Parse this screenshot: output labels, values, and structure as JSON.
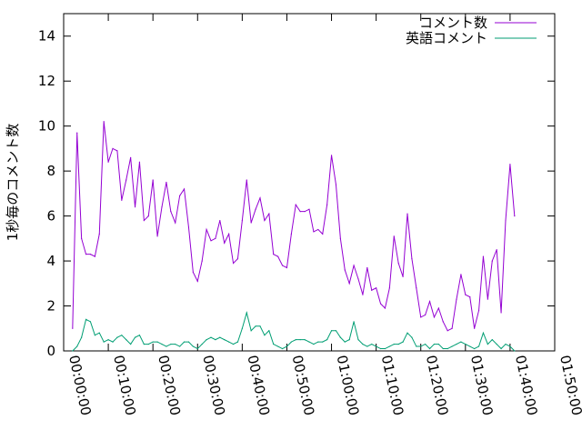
{
  "chart_data": {
    "type": "line",
    "ylabel": "1秒毎のコメント数",
    "xlabel": "",
    "ylim": [
      0,
      15
    ],
    "xlim_seconds": [
      0,
      6600
    ],
    "y_ticks": [
      0,
      2,
      4,
      6,
      8,
      10,
      12,
      14
    ],
    "y_tick_labels": [
      "0",
      "2",
      "4",
      "6",
      "8",
      "10",
      "12",
      "14"
    ],
    "x_ticks_seconds": [
      0,
      600,
      1200,
      1800,
      2400,
      3000,
      3600,
      4200,
      4800,
      5400,
      6000,
      6600
    ],
    "x_tick_labels": [
      "00:00:00",
      "00:10:00",
      "00:20:00",
      "00:30:00",
      "00:40:00",
      "00:50:00",
      "01:00:00",
      "01:10:00",
      "01:20:00",
      "01:30:00",
      "01:40:00",
      "01:50:00"
    ],
    "grid": false,
    "legend_position": "top-right",
    "series": [
      {
        "name": "コメント数",
        "color": "#9400d3",
        "points": [
          [
            "00:02:00",
            1.0
          ],
          [
            "00:03:00",
            9.7
          ],
          [
            "00:04:00",
            5.0
          ],
          [
            "00:05:00",
            4.3
          ],
          [
            "00:06:00",
            4.3
          ],
          [
            "00:07:00",
            4.2
          ],
          [
            "00:08:00",
            5.2
          ],
          [
            "00:09:00",
            10.2
          ],
          [
            "00:10:00",
            8.4
          ],
          [
            "00:11:00",
            9.0
          ],
          [
            "00:12:00",
            8.9
          ],
          [
            "00:13:00",
            6.7
          ],
          [
            "00:14:00",
            7.6
          ],
          [
            "00:15:00",
            8.6
          ],
          [
            "00:16:00",
            6.4
          ],
          [
            "00:17:00",
            8.4
          ],
          [
            "00:18:00",
            5.8
          ],
          [
            "00:19:00",
            6.0
          ],
          [
            "00:20:00",
            7.6
          ],
          [
            "00:21:00",
            5.1
          ],
          [
            "00:22:00",
            6.4
          ],
          [
            "00:23:00",
            7.5
          ],
          [
            "00:24:00",
            6.2
          ],
          [
            "00:25:00",
            5.7
          ],
          [
            "00:26:00",
            6.9
          ],
          [
            "00:27:00",
            7.2
          ],
          [
            "00:28:00",
            5.5
          ],
          [
            "00:29:00",
            3.5
          ],
          [
            "00:30:00",
            3.1
          ],
          [
            "00:31:00",
            4.0
          ],
          [
            "00:32:00",
            5.4
          ],
          [
            "00:33:00",
            4.9
          ],
          [
            "00:34:00",
            5.0
          ],
          [
            "00:35:00",
            5.8
          ],
          [
            "00:36:00",
            4.8
          ],
          [
            "00:37:00",
            5.2
          ],
          [
            "00:38:00",
            3.9
          ],
          [
            "00:39:00",
            4.1
          ],
          [
            "00:40:00",
            5.8
          ],
          [
            "00:41:00",
            7.6
          ],
          [
            "00:42:00",
            5.7
          ],
          [
            "00:43:00",
            6.3
          ],
          [
            "00:44:00",
            6.8
          ],
          [
            "00:45:00",
            5.8
          ],
          [
            "00:46:00",
            6.1
          ],
          [
            "00:47:00",
            4.3
          ],
          [
            "00:48:00",
            4.2
          ],
          [
            "00:49:00",
            3.8
          ],
          [
            "00:50:00",
            3.7
          ],
          [
            "00:51:00",
            5.2
          ],
          [
            "00:52:00",
            6.5
          ],
          [
            "00:53:00",
            6.2
          ],
          [
            "00:54:00",
            6.2
          ],
          [
            "00:55:00",
            6.3
          ],
          [
            "00:56:00",
            5.3
          ],
          [
            "00:57:00",
            5.4
          ],
          [
            "00:58:00",
            5.2
          ],
          [
            "00:59:00",
            6.5
          ],
          [
            "01:00:00",
            8.7
          ],
          [
            "01:01:00",
            7.4
          ],
          [
            "01:02:00",
            5.0
          ],
          [
            "01:03:00",
            3.6
          ],
          [
            "01:04:00",
            3.0
          ],
          [
            "01:05:00",
            3.8
          ],
          [
            "01:06:00",
            3.2
          ],
          [
            "01:07:00",
            2.5
          ],
          [
            "01:08:00",
            3.7
          ],
          [
            "01:09:00",
            2.7
          ],
          [
            "01:10:00",
            2.8
          ],
          [
            "01:11:00",
            2.1
          ],
          [
            "01:12:00",
            1.9
          ],
          [
            "01:13:00",
            2.8
          ],
          [
            "01:14:00",
            5.1
          ],
          [
            "01:15:00",
            3.9
          ],
          [
            "01:16:00",
            3.3
          ],
          [
            "01:17:00",
            6.1
          ],
          [
            "01:18:00",
            4.1
          ],
          [
            "01:19:00",
            2.8
          ],
          [
            "01:20:00",
            1.5
          ],
          [
            "01:21:00",
            1.6
          ],
          [
            "01:22:00",
            2.2
          ],
          [
            "01:23:00",
            1.5
          ],
          [
            "01:24:00",
            1.9
          ],
          [
            "01:25:00",
            1.3
          ],
          [
            "01:26:00",
            0.9
          ],
          [
            "01:27:00",
            1.0
          ],
          [
            "01:28:00",
            2.3
          ],
          [
            "01:29:00",
            3.4
          ],
          [
            "01:30:00",
            2.5
          ],
          [
            "01:31:00",
            2.4
          ],
          [
            "01:32:00",
            1.0
          ],
          [
            "01:33:00",
            1.8
          ],
          [
            "01:34:00",
            4.2
          ],
          [
            "01:35:00",
            2.3
          ],
          [
            "01:36:00",
            4.0
          ],
          [
            "01:37:00",
            4.5
          ],
          [
            "01:38:00",
            1.7
          ],
          [
            "01:39:00",
            5.8
          ],
          [
            "01:40:00",
            8.3
          ],
          [
            "01:41:00",
            6.0
          ]
        ]
      },
      {
        "name": "英語コメント",
        "color": "#009e73",
        "points": [
          [
            "00:02:00",
            0.0
          ],
          [
            "00:03:00",
            0.2
          ],
          [
            "00:04:00",
            0.6
          ],
          [
            "00:05:00",
            1.4
          ],
          [
            "00:06:00",
            1.3
          ],
          [
            "00:07:00",
            0.7
          ],
          [
            "00:08:00",
            0.8
          ],
          [
            "00:09:00",
            0.4
          ],
          [
            "00:10:00",
            0.5
          ],
          [
            "00:11:00",
            0.4
          ],
          [
            "00:12:00",
            0.6
          ],
          [
            "00:13:00",
            0.7
          ],
          [
            "00:14:00",
            0.5
          ],
          [
            "00:15:00",
            0.3
          ],
          [
            "00:16:00",
            0.6
          ],
          [
            "00:17:00",
            0.7
          ],
          [
            "00:18:00",
            0.3
          ],
          [
            "00:19:00",
            0.3
          ],
          [
            "00:20:00",
            0.4
          ],
          [
            "00:21:00",
            0.4
          ],
          [
            "00:22:00",
            0.3
          ],
          [
            "00:23:00",
            0.2
          ],
          [
            "00:24:00",
            0.3
          ],
          [
            "00:25:00",
            0.3
          ],
          [
            "00:26:00",
            0.2
          ],
          [
            "00:27:00",
            0.4
          ],
          [
            "00:28:00",
            0.4
          ],
          [
            "00:29:00",
            0.2
          ],
          [
            "00:30:00",
            0.1
          ],
          [
            "00:31:00",
            0.3
          ],
          [
            "00:32:00",
            0.5
          ],
          [
            "00:33:00",
            0.6
          ],
          [
            "00:34:00",
            0.5
          ],
          [
            "00:35:00",
            0.6
          ],
          [
            "00:36:00",
            0.5
          ],
          [
            "00:37:00",
            0.4
          ],
          [
            "00:38:00",
            0.3
          ],
          [
            "00:39:00",
            0.4
          ],
          [
            "00:40:00",
            1.0
          ],
          [
            "00:41:00",
            1.7
          ],
          [
            "00:42:00",
            0.9
          ],
          [
            "00:43:00",
            1.1
          ],
          [
            "00:44:00",
            1.1
          ],
          [
            "00:45:00",
            0.7
          ],
          [
            "00:46:00",
            0.9
          ],
          [
            "00:47:00",
            0.3
          ],
          [
            "00:48:00",
            0.2
          ],
          [
            "00:49:00",
            0.1
          ],
          [
            "00:50:00",
            0.2
          ],
          [
            "00:51:00",
            0.4
          ],
          [
            "00:52:00",
            0.5
          ],
          [
            "00:53:00",
            0.5
          ],
          [
            "00:54:00",
            0.5
          ],
          [
            "00:55:00",
            0.4
          ],
          [
            "00:56:00",
            0.3
          ],
          [
            "00:57:00",
            0.4
          ],
          [
            "00:58:00",
            0.4
          ],
          [
            "00:59:00",
            0.5
          ],
          [
            "01:00:00",
            0.9
          ],
          [
            "01:01:00",
            0.9
          ],
          [
            "01:02:00",
            0.6
          ],
          [
            "01:03:00",
            0.4
          ],
          [
            "01:04:00",
            0.5
          ],
          [
            "01:05:00",
            1.3
          ],
          [
            "01:06:00",
            0.5
          ],
          [
            "01:07:00",
            0.3
          ],
          [
            "01:08:00",
            0.2
          ],
          [
            "01:09:00",
            0.3
          ],
          [
            "01:10:00",
            0.2
          ],
          [
            "01:11:00",
            0.1
          ],
          [
            "01:12:00",
            0.1
          ],
          [
            "01:13:00",
            0.2
          ],
          [
            "01:14:00",
            0.3
          ],
          [
            "01:15:00",
            0.3
          ],
          [
            "01:16:00",
            0.4
          ],
          [
            "01:17:00",
            0.8
          ],
          [
            "01:18:00",
            0.6
          ],
          [
            "01:19:00",
            0.2
          ],
          [
            "01:20:00",
            0.2
          ],
          [
            "01:21:00",
            0.3
          ],
          [
            "01:22:00",
            0.1
          ],
          [
            "01:23:00",
            0.3
          ],
          [
            "01:24:00",
            0.3
          ],
          [
            "01:25:00",
            0.1
          ],
          [
            "01:26:00",
            0.1
          ],
          [
            "01:27:00",
            0.2
          ],
          [
            "01:28:00",
            0.3
          ],
          [
            "01:29:00",
            0.4
          ],
          [
            "01:30:00",
            0.3
          ],
          [
            "01:31:00",
            0.2
          ],
          [
            "01:32:00",
            0.1
          ],
          [
            "01:33:00",
            0.2
          ],
          [
            "01:34:00",
            0.8
          ],
          [
            "01:35:00",
            0.3
          ],
          [
            "01:36:00",
            0.5
          ],
          [
            "01:37:00",
            0.3
          ],
          [
            "01:38:00",
            0.1
          ],
          [
            "01:39:00",
            0.3
          ],
          [
            "01:40:00",
            0.2
          ],
          [
            "01:41:00",
            0.0
          ]
        ]
      }
    ]
  }
}
